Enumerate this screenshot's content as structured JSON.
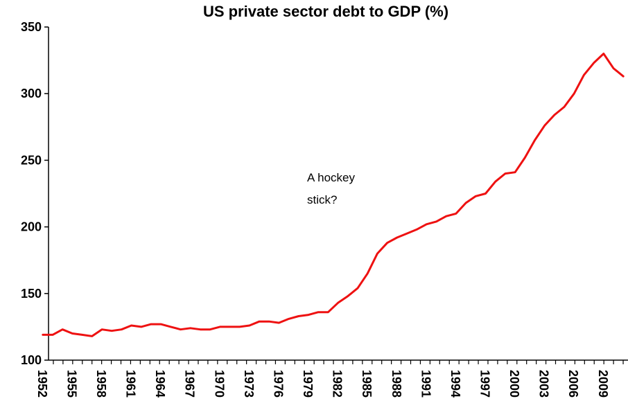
{
  "chart_data": {
    "type": "line",
    "title": "US private sector debt to GDP (%)",
    "xlabel": "",
    "ylabel": "",
    "ylim": [
      100,
      350
    ],
    "yticks": [
      100,
      150,
      200,
      250,
      300,
      350
    ],
    "xtick_labels": [
      "1952",
      "1955",
      "1958",
      "1961",
      "1964",
      "1967",
      "1970",
      "1973",
      "1976",
      "1979",
      "1982",
      "1985",
      "1988",
      "1991",
      "1994",
      "1997",
      "2000",
      "2003",
      "2006",
      "2009"
    ],
    "annotation": "A hockey stick?",
    "line_color": "#ee1111",
    "grid": false,
    "legend": "none",
    "x": [
      1952,
      1953,
      1954,
      1955,
      1956,
      1957,
      1958,
      1959,
      1960,
      1961,
      1962,
      1963,
      1964,
      1965,
      1966,
      1967,
      1968,
      1969,
      1970,
      1971,
      1972,
      1973,
      1974,
      1975,
      1976,
      1977,
      1978,
      1979,
      1980,
      1981,
      1982,
      1983,
      1984,
      1985,
      1986,
      1987,
      1988,
      1989,
      1990,
      1991,
      1992,
      1993,
      1994,
      1995,
      1996,
      1997,
      1998,
      1999,
      2000,
      2001,
      2002,
      2003,
      2004,
      2005,
      2006,
      2007,
      2008,
      2009,
      2010,
      2011
    ],
    "values": [
      119,
      119,
      123,
      120,
      119,
      118,
      123,
      122,
      123,
      126,
      125,
      127,
      127,
      125,
      123,
      124,
      123,
      123,
      125,
      125,
      125,
      126,
      129,
      129,
      128,
      131,
      133,
      134,
      136,
      136,
      143,
      148,
      154,
      165,
      180,
      188,
      192,
      195,
      198,
      202,
      204,
      208,
      210,
      218,
      223,
      225,
      234,
      240,
      241,
      252,
      265,
      276,
      284,
      290,
      300,
      314,
      323,
      330,
      319,
      313
    ]
  }
}
